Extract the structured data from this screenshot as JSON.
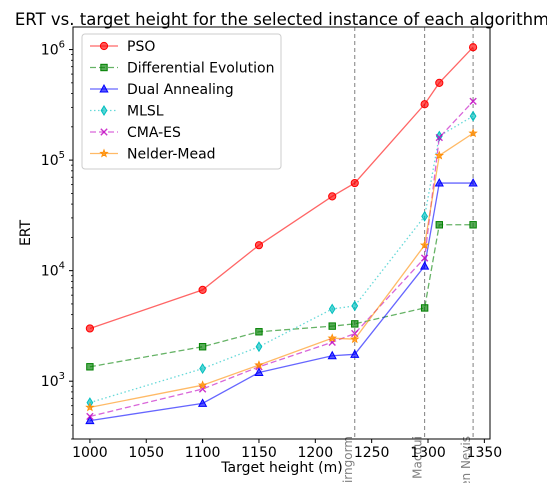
{
  "chart_data": {
    "type": "line",
    "title": "ERT vs. target height for the selected instance of each algorithm",
    "xlabel": "Target height (m)",
    "ylabel": "ERT",
    "xlim": [
      985,
      1355
    ],
    "ylim": [
      300,
      1600000
    ],
    "yscale": "log",
    "xticks": [
      "1000",
      "1050",
      "1100",
      "1150",
      "1200",
      "1250",
      "1300",
      "1350"
    ],
    "yticks": [
      {
        "value": 1000,
        "base": "10",
        "exp": "3"
      },
      {
        "value": 10000,
        "base": "10",
        "exp": "4"
      },
      {
        "value": 100000,
        "base": "10",
        "exp": "5"
      },
      {
        "value": 1000000,
        "base": "10",
        "exp": "6"
      }
    ],
    "grid": false,
    "legend_position": "top-left",
    "annotations": [
      {
        "x": 1235,
        "label": "Cairngorm"
      },
      {
        "x": 1297,
        "label": "Ben Macdui"
      },
      {
        "x": 1340,
        "label": "Ben Nevis"
      }
    ],
    "series": [
      {
        "name": "PSO",
        "color": "#ff0000",
        "dash": "solid",
        "marker": "circle",
        "points": [
          [
            1000,
            3000
          ],
          [
            1100,
            6700
          ],
          [
            1150,
            17000
          ],
          [
            1215,
            47000
          ],
          [
            1235,
            62000
          ],
          [
            1297,
            320000
          ],
          [
            1310,
            500000
          ],
          [
            1340,
            1050000
          ]
        ]
      },
      {
        "name": "Differential Evolution",
        "color": "#008000",
        "dash": "dashed",
        "marker": "square",
        "points": [
          [
            1000,
            1350
          ],
          [
            1100,
            2050
          ],
          [
            1150,
            2800
          ],
          [
            1215,
            3150
          ],
          [
            1235,
            3300
          ],
          [
            1297,
            4600
          ],
          [
            1310,
            26000
          ],
          [
            1340,
            26000
          ]
        ]
      },
      {
        "name": "Dual Annealing",
        "color": "#0000ff",
        "dash": "solid",
        "marker": "triangle",
        "points": [
          [
            1000,
            440
          ],
          [
            1100,
            630
          ],
          [
            1150,
            1200
          ],
          [
            1215,
            1700
          ],
          [
            1235,
            1750
          ],
          [
            1297,
            11000
          ],
          [
            1310,
            62000
          ],
          [
            1340,
            62000
          ]
        ]
      },
      {
        "name": "MLSL",
        "color": "#00bfbf",
        "dash": "dotted",
        "marker": "thin-diamond",
        "points": [
          [
            1000,
            640
          ],
          [
            1100,
            1300
          ],
          [
            1150,
            2050
          ],
          [
            1215,
            4500
          ],
          [
            1235,
            4800
          ],
          [
            1297,
            31000
          ],
          [
            1310,
            165000
          ],
          [
            1340,
            250000
          ]
        ]
      },
      {
        "name": "CMA-ES",
        "color": "#bf00bf",
        "dash": "dashed",
        "marker": "x",
        "points": [
          [
            1000,
            480
          ],
          [
            1100,
            850
          ],
          [
            1150,
            1350
          ],
          [
            1215,
            2250
          ],
          [
            1235,
            2700
          ],
          [
            1297,
            13000
          ],
          [
            1310,
            160000
          ],
          [
            1340,
            340000
          ]
        ]
      },
      {
        "name": "Nelder-Mead",
        "color": "#ff8c00",
        "dash": "solid",
        "marker": "star",
        "points": [
          [
            1000,
            580
          ],
          [
            1100,
            920
          ],
          [
            1150,
            1400
          ],
          [
            1215,
            2450
          ],
          [
            1235,
            2400
          ],
          [
            1297,
            17000
          ],
          [
            1310,
            110000
          ],
          [
            1340,
            175000
          ]
        ]
      }
    ]
  }
}
